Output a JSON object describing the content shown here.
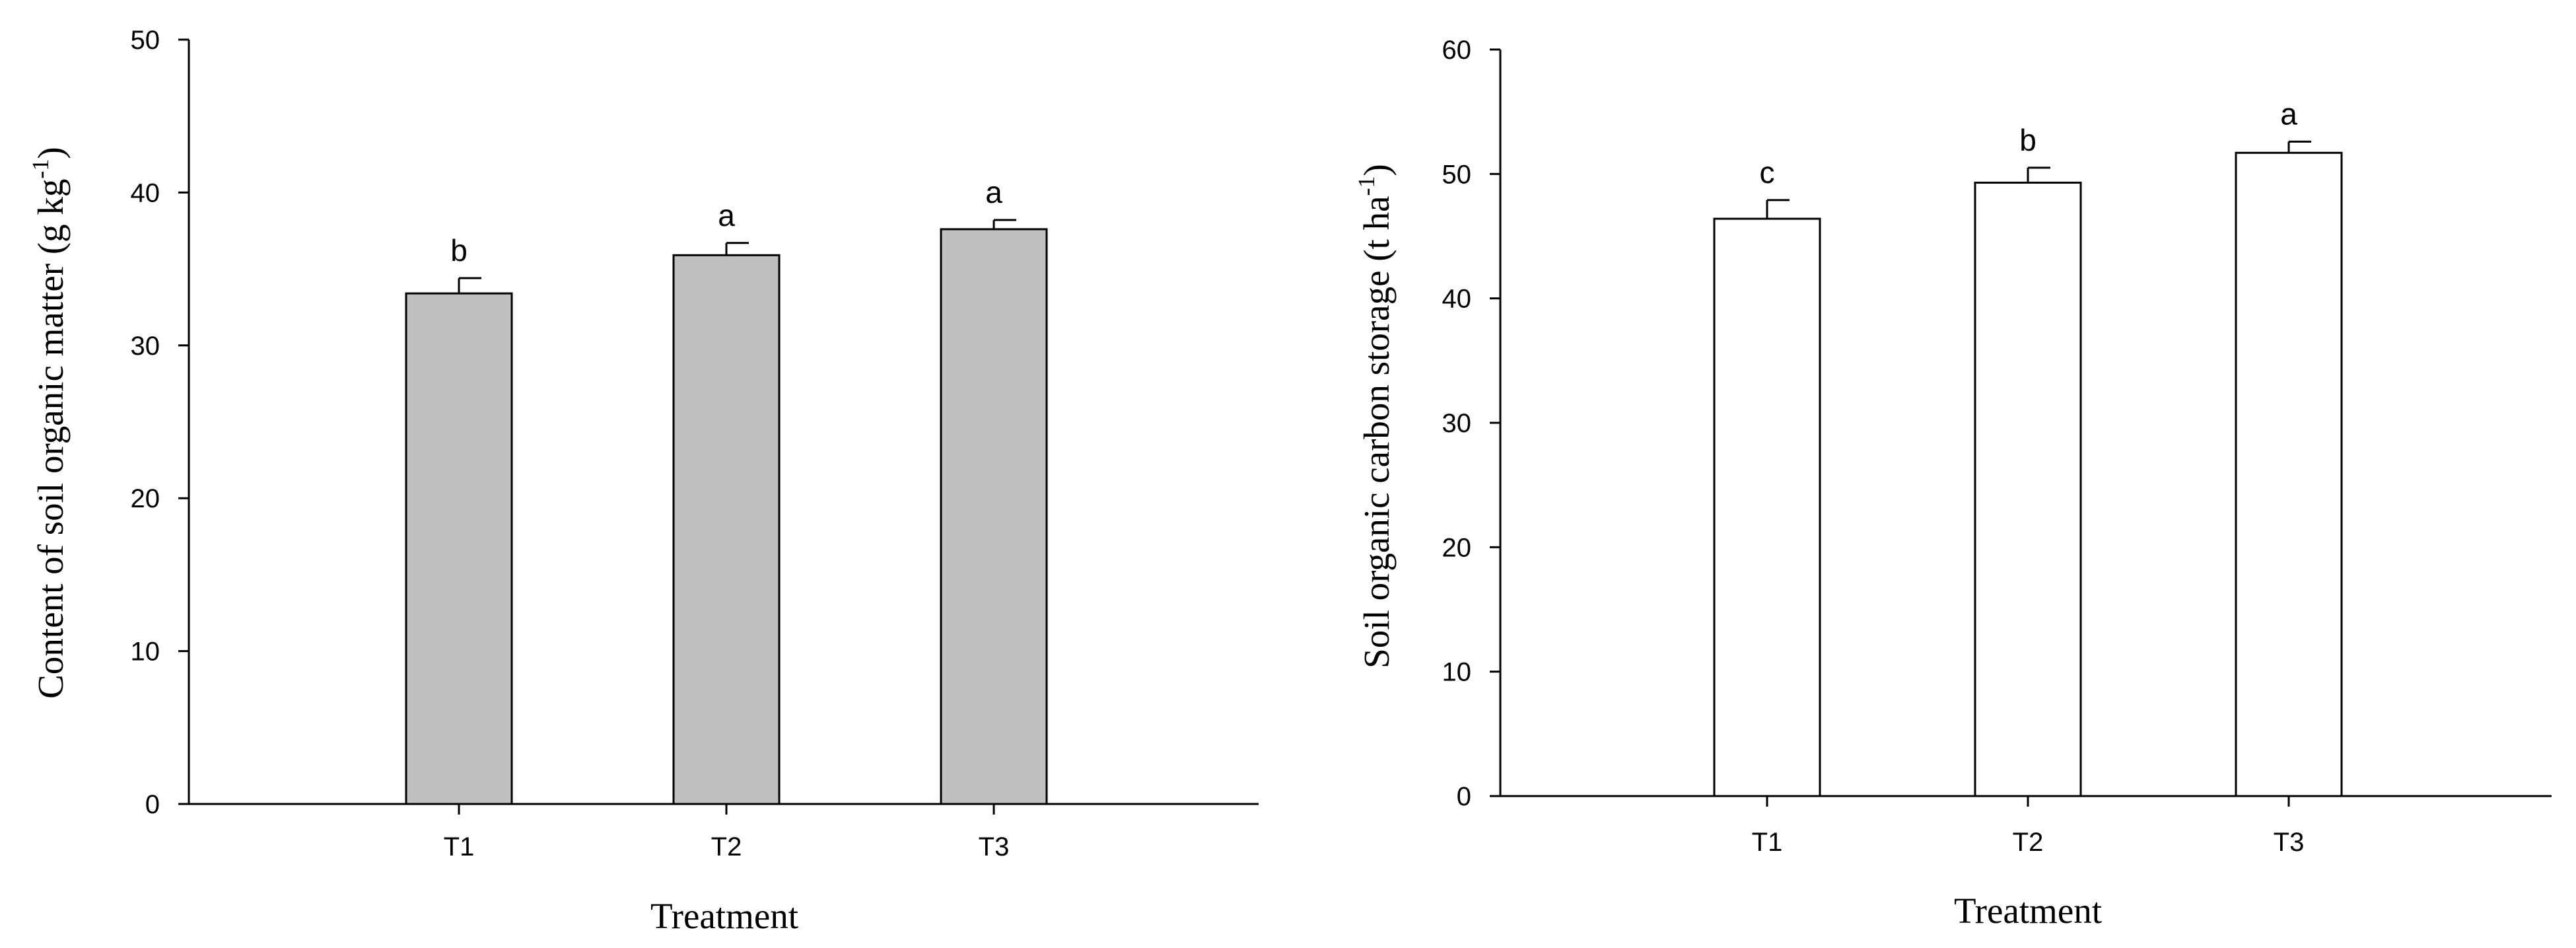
{
  "chart_data": [
    {
      "type": "bar",
      "categories": [
        "T1",
        "T2",
        "T3"
      ],
      "values": [
        33.4,
        35.9,
        37.6
      ],
      "errors": [
        1.0,
        0.8,
        0.6
      ],
      "significance": [
        "b",
        "a",
        "a"
      ],
      "xlabel": "Treatment",
      "ylabel": {
        "main": "Content of soil organic matter (g kg",
        "sup": "-1",
        "close": ")"
      },
      "ylim": [
        0,
        50
      ],
      "yticks": [
        0,
        10,
        20,
        30,
        40,
        50
      ],
      "bar_color": "#c0c0c0",
      "grid": false
    },
    {
      "type": "bar",
      "categories": [
        "T1",
        "T2",
        "T3"
      ],
      "values": [
        46.4,
        49.3,
        51.7
      ],
      "errors": [
        1.5,
        1.2,
        0.9
      ],
      "significance": [
        "c",
        "b",
        "a"
      ],
      "xlabel": "Treatment",
      "ylabel": {
        "main": "Soil organic carbon storage (t ha",
        "sup": "-1",
        "close": ")"
      },
      "ylim": [
        0,
        60
      ],
      "yticks": [
        0,
        10,
        20,
        30,
        40,
        50,
        60
      ],
      "bar_color": "#ffffff",
      "grid": false
    }
  ]
}
